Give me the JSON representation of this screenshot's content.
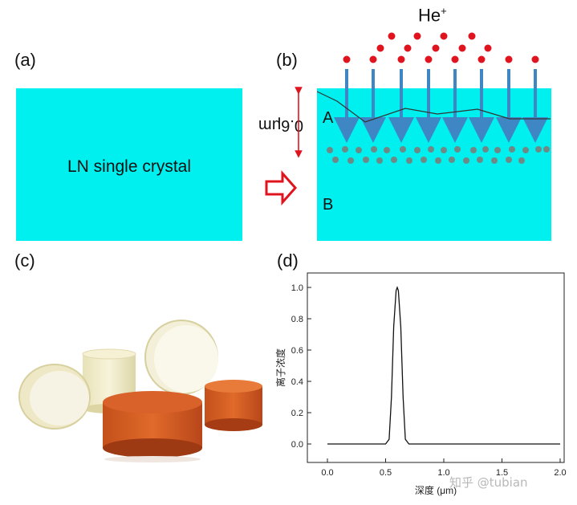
{
  "panels": {
    "a": {
      "label": "(a)",
      "box_text": "LN single crystal",
      "box_color": "#00f0f0"
    },
    "b": {
      "label": "(b)",
      "ion_label": "He",
      "ion_charge": "+",
      "depth_label": "0.6μm",
      "region_a": "A",
      "region_b": "B",
      "ion_color": "#e0141e",
      "arrow_color": "#3f86c4",
      "implant_dot_color": "#6e8a86",
      "big_arrow_color": "#e0141e"
    },
    "c": {
      "label": "(c)"
    },
    "d": {
      "label": "(d)"
    }
  },
  "chart_data": {
    "type": "line",
    "xlabel": "深度 (μm)",
    "ylabel": "离子浓度",
    "xlim": [
      0.0,
      2.0
    ],
    "ylim": [
      -0.08,
      1.08
    ],
    "xticks": [
      "0.0",
      "0.5",
      "1.0",
      "1.5",
      "2.0"
    ],
    "yticks": [
      "0.0",
      "0.2",
      "0.4",
      "0.6",
      "0.8",
      "1.0"
    ],
    "series": [
      {
        "x": [
          0.0,
          0.5,
          0.53,
          0.55,
          0.57,
          0.59,
          0.6,
          0.61,
          0.63,
          0.65,
          0.67,
          0.7,
          1.0,
          1.5,
          2.0
        ],
        "y": [
          0.0,
          0.0,
          0.03,
          0.3,
          0.75,
          0.98,
          1.0,
          0.98,
          0.75,
          0.3,
          0.03,
          0.0,
          0.0,
          0.0,
          0.0
        ]
      }
    ]
  },
  "watermark": "知乎 @tubian"
}
